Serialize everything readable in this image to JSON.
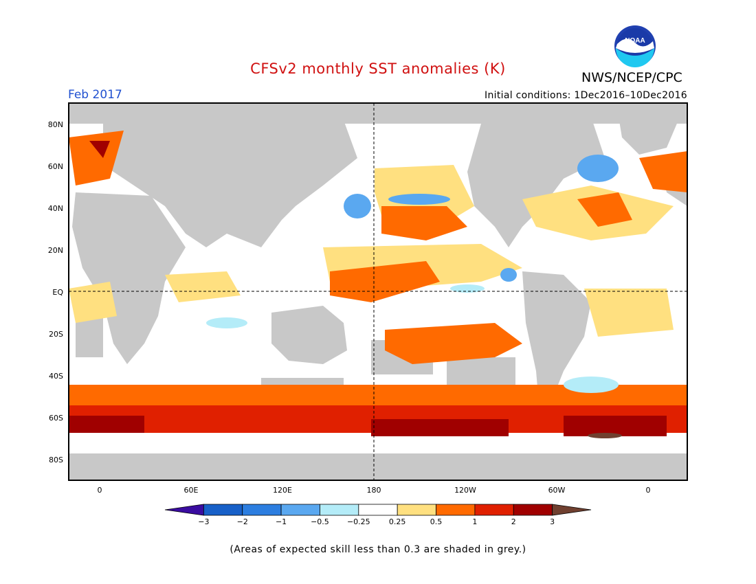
{
  "header": {
    "title": "CFSv2 monthly SST anomalies (K)",
    "organization": "NWS/NCEP/CPC",
    "month": "Feb 2017",
    "initial_conditions": "Initial conditions: 1Dec2016–10Dec2016"
  },
  "logo": {
    "name": "noaa-logo",
    "text": "NOAA"
  },
  "map": {
    "lat_ticks": [
      "80N",
      "60N",
      "40N",
      "20N",
      "EQ",
      "20S",
      "40S",
      "60S",
      "80S"
    ],
    "lon_ticks": [
      "0",
      "60E",
      "120E",
      "180",
      "120W",
      "60W",
      "0"
    ],
    "land_color": "#c8c8c8",
    "coast_color": "#000000",
    "grid": "dashed equator and dateline"
  },
  "colorbar": {
    "labels": [
      "-3",
      "-2",
      "-1",
      "-0.5",
      "-0.25",
      "0.25",
      "0.5",
      "1",
      "2",
      "3"
    ],
    "colors": [
      "#3a0ca0",
      "#1860c8",
      "#2c7ee0",
      "#5aa8f0",
      "#b4ecf8",
      "#ffffff",
      "#ffe080",
      "#ff6a00",
      "#e02000",
      "#a00000",
      "#704030"
    ],
    "units": "K"
  },
  "footnote": "(Areas of expected skill less than 0.3 are shaded in grey.)"
}
